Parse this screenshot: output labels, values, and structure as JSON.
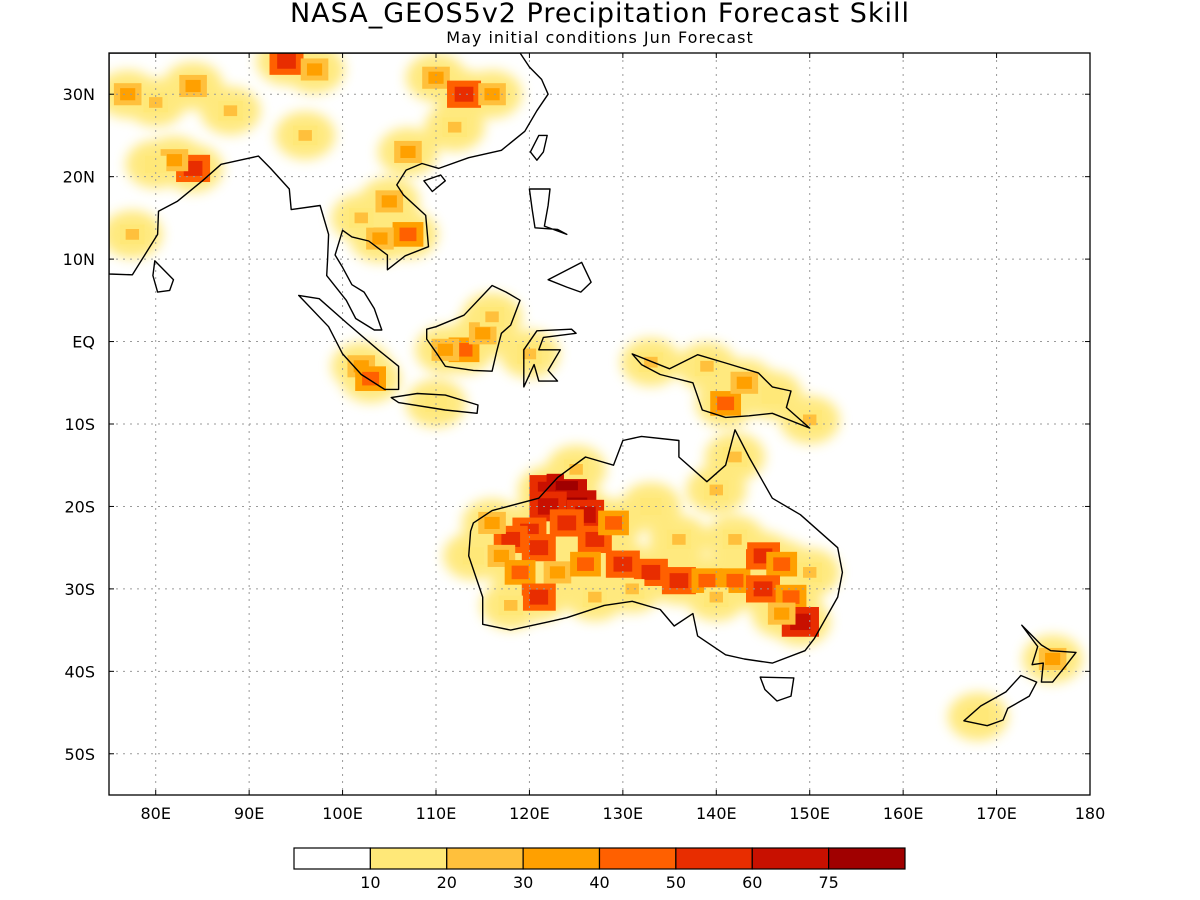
{
  "title": "NASA_GEOS5v2 Precipitation Forecast Skill",
  "subtitle": "May initial conditions  Jun Forecast",
  "map": {
    "lon_range": [
      75,
      180
    ],
    "lat_range": [
      -55,
      35
    ],
    "lon_ticks": [
      {
        "value": 80,
        "label": "80E"
      },
      {
        "value": 90,
        "label": "90E"
      },
      {
        "value": 100,
        "label": "100E"
      },
      {
        "value": 110,
        "label": "110E"
      },
      {
        "value": 120,
        "label": "120E"
      },
      {
        "value": 130,
        "label": "130E"
      },
      {
        "value": 140,
        "label": "140E"
      },
      {
        "value": 150,
        "label": "150E"
      },
      {
        "value": 160,
        "label": "160E"
      },
      {
        "value": 170,
        "label": "170E"
      },
      {
        "value": 180,
        "label": "180"
      }
    ],
    "lat_ticks": [
      {
        "value": 30,
        "label": "30N"
      },
      {
        "value": 20,
        "label": "20N"
      },
      {
        "value": 10,
        "label": "10N"
      },
      {
        "value": 0,
        "label": "EQ"
      },
      {
        "value": -10,
        "label": "10S"
      },
      {
        "value": -20,
        "label": "20S"
      },
      {
        "value": -30,
        "label": "30S"
      },
      {
        "value": -40,
        "label": "40S"
      },
      {
        "value": -50,
        "label": "50S"
      }
    ],
    "grid": true,
    "regions": [
      {
        "name": "Australia",
        "points": [
          [
            114,
            -22
          ],
          [
            116,
            -20.5
          ],
          [
            121,
            -19
          ],
          [
            123,
            -16.5
          ],
          [
            126,
            -14
          ],
          [
            129,
            -15
          ],
          [
            130,
            -12
          ],
          [
            132,
            -11.5
          ],
          [
            136,
            -12
          ],
          [
            136,
            -14
          ],
          [
            139,
            -17
          ],
          [
            141,
            -15
          ],
          [
            142,
            -10.7
          ],
          [
            143.5,
            -14
          ],
          [
            146,
            -19
          ],
          [
            149,
            -21
          ],
          [
            153,
            -25
          ],
          [
            153.5,
            -28
          ],
          [
            153,
            -31
          ],
          [
            150.5,
            -36
          ],
          [
            149.5,
            -37.5
          ],
          [
            146,
            -39
          ],
          [
            143,
            -38.5
          ],
          [
            141,
            -38
          ],
          [
            138,
            -35.7
          ],
          [
            137.5,
            -33
          ],
          [
            135.5,
            -34.5
          ],
          [
            134,
            -32.5
          ],
          [
            131,
            -31.5
          ],
          [
            128,
            -32
          ],
          [
            124,
            -33.5
          ],
          [
            122,
            -34
          ],
          [
            118,
            -35
          ],
          [
            115,
            -34.3
          ],
          [
            115,
            -31
          ],
          [
            113.5,
            -26
          ],
          [
            113.7,
            -23
          ]
        ]
      },
      {
        "name": "Tasmania",
        "points": [
          [
            144.7,
            -40.7
          ],
          [
            148.3,
            -40.8
          ],
          [
            148,
            -43
          ],
          [
            146.5,
            -43.6
          ],
          [
            145.2,
            -42.2
          ]
        ]
      },
      {
        "name": "New Guinea",
        "points": [
          [
            131,
            -1.5
          ],
          [
            135,
            -3.3
          ],
          [
            138,
            -1.6
          ],
          [
            141,
            -2.6
          ],
          [
            144.5,
            -3.8
          ],
          [
            146,
            -5.5
          ],
          [
            148,
            -6
          ],
          [
            147.5,
            -8
          ],
          [
            150,
            -10.5
          ],
          [
            146,
            -8.7
          ],
          [
            143.5,
            -9
          ],
          [
            141,
            -9.2
          ],
          [
            138.5,
            -8.3
          ],
          [
            137.5,
            -5
          ],
          [
            134,
            -4
          ],
          [
            132,
            -2.8
          ]
        ]
      },
      {
        "name": "Borneo",
        "points": [
          [
            109,
            1.5
          ],
          [
            110,
            1.8
          ],
          [
            113,
            3.2
          ],
          [
            116,
            6.8
          ],
          [
            117.5,
            6
          ],
          [
            119,
            5
          ],
          [
            118,
            2
          ],
          [
            117,
            1
          ],
          [
            116.5,
            -1.2
          ],
          [
            116,
            -3.6
          ],
          [
            114,
            -3.5
          ],
          [
            111,
            -3
          ],
          [
            110,
            -1.3
          ],
          [
            109,
            0.3
          ]
        ]
      },
      {
        "name": "Sumatra",
        "points": [
          [
            95.3,
            5.6
          ],
          [
            97.5,
            5.2
          ],
          [
            100.5,
            2.2
          ],
          [
            103.8,
            -1
          ],
          [
            106,
            -3
          ],
          [
            106,
            -5.8
          ],
          [
            104.5,
            -5.8
          ],
          [
            102,
            -4
          ],
          [
            100,
            -1.5
          ],
          [
            98.5,
            1.8
          ]
        ]
      },
      {
        "name": "Java",
        "points": [
          [
            105.2,
            -6.8
          ],
          [
            108,
            -6.3
          ],
          [
            111,
            -6.5
          ],
          [
            114.5,
            -7.7
          ],
          [
            114.4,
            -8.7
          ],
          [
            111,
            -8.3
          ],
          [
            106,
            -7.4
          ]
        ]
      },
      {
        "name": "Sulawesi",
        "points": [
          [
            119.4,
            -5.5
          ],
          [
            119.4,
            -1
          ],
          [
            120.8,
            1.3
          ],
          [
            124.5,
            1.5
          ],
          [
            125,
            1
          ],
          [
            121.5,
            0.5
          ],
          [
            121,
            -1
          ],
          [
            123.3,
            -1
          ],
          [
            122,
            -3.5
          ],
          [
            123,
            -4.8
          ],
          [
            121,
            -4.8
          ],
          [
            120.5,
            -2.8
          ]
        ]
      },
      {
        "name": "Luzon",
        "points": [
          [
            120,
            18.5
          ],
          [
            122.2,
            18.5
          ],
          [
            122,
            16.5
          ],
          [
            121.6,
            14
          ],
          [
            124,
            13
          ],
          [
            123,
            13.6
          ],
          [
            120.6,
            13.8
          ],
          [
            120.3,
            16
          ]
        ]
      },
      {
        "name": "Mindanao",
        "points": [
          [
            122,
            7.5
          ],
          [
            125.6,
            9.6
          ],
          [
            126.6,
            7.2
          ],
          [
            125.5,
            6
          ],
          [
            124,
            6.6
          ]
        ]
      },
      {
        "name": "Taiwan",
        "points": [
          [
            121,
            25
          ],
          [
            121.9,
            25
          ],
          [
            121.5,
            23
          ],
          [
            120.8,
            22
          ],
          [
            120.1,
            23
          ]
        ]
      },
      {
        "name": "Sri Lanka",
        "points": [
          [
            79.9,
            9.8
          ],
          [
            81.9,
            7.5
          ],
          [
            81.5,
            6.2
          ],
          [
            80.2,
            6
          ],
          [
            79.7,
            8
          ]
        ]
      },
      {
        "name": "Hainan",
        "points": [
          [
            108.7,
            19.5
          ],
          [
            110.5,
            20.2
          ],
          [
            111,
            19.5
          ],
          [
            109.6,
            18.2
          ]
        ]
      },
      {
        "name": "NZ North",
        "points": [
          [
            172.7,
            -34.4
          ],
          [
            174.8,
            -36.8
          ],
          [
            175.8,
            -37.5
          ],
          [
            178.5,
            -37.7
          ],
          [
            177.5,
            -39.2
          ],
          [
            176,
            -41.3
          ],
          [
            174.8,
            -41.3
          ],
          [
            175,
            -39
          ],
          [
            173.8,
            -39.2
          ],
          [
            174.4,
            -37
          ]
        ]
      },
      {
        "name": "NZ South",
        "points": [
          [
            172.6,
            -40.5
          ],
          [
            174.3,
            -41.3
          ],
          [
            173.5,
            -43
          ],
          [
            171.2,
            -44.5
          ],
          [
            170.7,
            -45.9
          ],
          [
            169,
            -46.6
          ],
          [
            166.5,
            -46
          ],
          [
            168.3,
            -44.2
          ],
          [
            171,
            -42.5
          ]
        ]
      },
      {
        "name": "Asia Mainland",
        "points": [
          [
            75,
            8.2
          ],
          [
            77.5,
            8.1
          ],
          [
            80.2,
            13
          ],
          [
            80.3,
            15.8
          ],
          [
            82.3,
            17
          ],
          [
            85,
            19.5
          ],
          [
            87,
            21.5
          ],
          [
            89,
            22
          ],
          [
            91,
            22.5
          ],
          [
            92.3,
            21
          ],
          [
            94.3,
            18.5
          ],
          [
            94.5,
            16
          ],
          [
            97.6,
            16.5
          ],
          [
            98.5,
            13
          ],
          [
            98.4,
            10
          ],
          [
            98.3,
            8
          ],
          [
            100.4,
            5
          ],
          [
            101.4,
            2.8
          ],
          [
            103.4,
            1.4
          ],
          [
            104.2,
            1.4
          ],
          [
            103.4,
            4
          ],
          [
            102.3,
            6
          ],
          [
            101,
            6.9
          ],
          [
            100,
            9
          ],
          [
            99.2,
            10.5
          ],
          [
            100,
            13.5
          ],
          [
            101,
            12.7
          ],
          [
            102.8,
            12.2
          ],
          [
            104.8,
            10.5
          ],
          [
            104.8,
            8.7
          ],
          [
            106.7,
            10.4
          ],
          [
            109.2,
            11.5
          ],
          [
            108.9,
            15.3
          ],
          [
            106.5,
            17.8
          ],
          [
            105.8,
            19
          ],
          [
            106.8,
            20.8
          ],
          [
            108.5,
            21.6
          ],
          [
            110.3,
            21
          ],
          [
            113.5,
            22.3
          ],
          [
            117,
            23.2
          ],
          [
            119.5,
            25.5
          ],
          [
            120.8,
            28
          ],
          [
            122,
            30
          ],
          [
            121.3,
            31.8
          ],
          [
            120,
            33.3
          ],
          [
            119,
            35
          ],
          [
            75,
            35
          ]
        ]
      }
    ]
  },
  "precip_cells": [
    {
      "lon": 122,
      "lat": -18,
      "cat": 6
    },
    {
      "lon": 124,
      "lat": -18,
      "cat": 7
    },
    {
      "lon": 125,
      "lat": -20,
      "cat": 7
    },
    {
      "lon": 122,
      "lat": -20,
      "cat": 6
    },
    {
      "lon": 126,
      "lat": -21,
      "cat": 6
    },
    {
      "lon": 124,
      "lat": -22,
      "cat": 5
    },
    {
      "lon": 120,
      "lat": -23,
      "cat": 5
    },
    {
      "lon": 118,
      "lat": -24,
      "cat": 5
    },
    {
      "lon": 121,
      "lat": -25,
      "cat": 5
    },
    {
      "lon": 127,
      "lat": -24,
      "cat": 5
    },
    {
      "lon": 129,
      "lat": -22,
      "cat": 4
    },
    {
      "lon": 116,
      "lat": -22,
      "cat": 3
    },
    {
      "lon": 117,
      "lat": -26,
      "cat": 3
    },
    {
      "lon": 119,
      "lat": -28,
      "cat": 4
    },
    {
      "lon": 121,
      "lat": -31,
      "cat": 5
    },
    {
      "lon": 118,
      "lat": -32,
      "cat": 2
    },
    {
      "lon": 123,
      "lat": -28,
      "cat": 3
    },
    {
      "lon": 126,
      "lat": -27,
      "cat": 4
    },
    {
      "lon": 130,
      "lat": -27,
      "cat": 5
    },
    {
      "lon": 133,
      "lat": -28,
      "cat": 5
    },
    {
      "lon": 136,
      "lat": -29,
      "cat": 5
    },
    {
      "lon": 139,
      "lat": -29,
      "cat": 4
    },
    {
      "lon": 142,
      "lat": -29,
      "cat": 4
    },
    {
      "lon": 145,
      "lat": -26,
      "cat": 5
    },
    {
      "lon": 147,
      "lat": -27,
      "cat": 4
    },
    {
      "lon": 145,
      "lat": -30,
      "cat": 5
    },
    {
      "lon": 148,
      "lat": -31,
      "cat": 4
    },
    {
      "lon": 149,
      "lat": -34,
      "cat": 6
    },
    {
      "lon": 147,
      "lat": -33,
      "cat": 3
    },
    {
      "lon": 142,
      "lat": -24,
      "cat": 2
    },
    {
      "lon": 150,
      "lat": -28,
      "cat": 2
    },
    {
      "lon": 131,
      "lat": -30,
      "cat": 2
    },
    {
      "lon": 127,
      "lat": -31,
      "cat": 2
    },
    {
      "lon": 140,
      "lat": -31,
      "cat": 2
    },
    {
      "lon": 136,
      "lat": -24,
      "cat": 2
    },
    {
      "lon": 133,
      "lat": -20,
      "cat": 1
    },
    {
      "lon": 140,
      "lat": -18,
      "cat": 2
    },
    {
      "lon": 142,
      "lat": -14,
      "cat": 2
    },
    {
      "lon": 114,
      "lat": -26,
      "cat": 1
    },
    {
      "lon": 125,
      "lat": -15.5,
      "cat": 2
    },
    {
      "lon": 113,
      "lat": -1,
      "cat": 4
    },
    {
      "lon": 111,
      "lat": -1,
      "cat": 3
    },
    {
      "lon": 115,
      "lat": 1,
      "cat": 3
    },
    {
      "lon": 116,
      "lat": 3,
      "cat": 2
    },
    {
      "lon": 120,
      "lat": -1.5,
      "cat": 2
    },
    {
      "lon": 102,
      "lat": -3,
      "cat": 3
    },
    {
      "lon": 103,
      "lat": -4.5,
      "cat": 4
    },
    {
      "lon": 110,
      "lat": -7.5,
      "cat": 1
    },
    {
      "lon": 141,
      "lat": -7.5,
      "cat": 4
    },
    {
      "lon": 143,
      "lat": -5,
      "cat": 3
    },
    {
      "lon": 139,
      "lat": -3,
      "cat": 2
    },
    {
      "lon": 146,
      "lat": -6.5,
      "cat": 1
    },
    {
      "lon": 150,
      "lat": -9.5,
      "cat": 2
    },
    {
      "lon": 133,
      "lat": -2.5,
      "cat": 2
    },
    {
      "lon": 84,
      "lat": 21,
      "cat": 5
    },
    {
      "lon": 82,
      "lat": 22,
      "cat": 3
    },
    {
      "lon": 80,
      "lat": 21.5,
      "cat": 1
    },
    {
      "lon": 77,
      "lat": 30,
      "cat": 3
    },
    {
      "lon": 80,
      "lat": 29,
      "cat": 2
    },
    {
      "lon": 84,
      "lat": 31,
      "cat": 3
    },
    {
      "lon": 88,
      "lat": 28,
      "cat": 2
    },
    {
      "lon": 94,
      "lat": 34,
      "cat": 5
    },
    {
      "lon": 97,
      "lat": 33,
      "cat": 3
    },
    {
      "lon": 110,
      "lat": 32,
      "cat": 3
    },
    {
      "lon": 113,
      "lat": 30,
      "cat": 5
    },
    {
      "lon": 116,
      "lat": 30,
      "cat": 3
    },
    {
      "lon": 112,
      "lat": 26,
      "cat": 2
    },
    {
      "lon": 107,
      "lat": 23,
      "cat": 3
    },
    {
      "lon": 105,
      "lat": 17,
      "cat": 3
    },
    {
      "lon": 107,
      "lat": 13,
      "cat": 4
    },
    {
      "lon": 104,
      "lat": 12.5,
      "cat": 3
    },
    {
      "lon": 102,
      "lat": 15,
      "cat": 2
    },
    {
      "lon": 96,
      "lat": 25,
      "cat": 2
    },
    {
      "lon": 77.5,
      "lat": 13,
      "cat": 2
    },
    {
      "lon": 176,
      "lat": -38.5,
      "cat": 3
    },
    {
      "lon": 168,
      "lat": -45.5,
      "cat": 1
    }
  ],
  "colorbar": {
    "colors": [
      "#ffffff",
      "#ffe878",
      "#ffc03c",
      "#ffa000",
      "#ff6000",
      "#e82d00",
      "#c81000",
      "#a00000"
    ],
    "labels": [
      "10",
      "20",
      "30",
      "40",
      "50",
      "60",
      "75"
    ]
  }
}
